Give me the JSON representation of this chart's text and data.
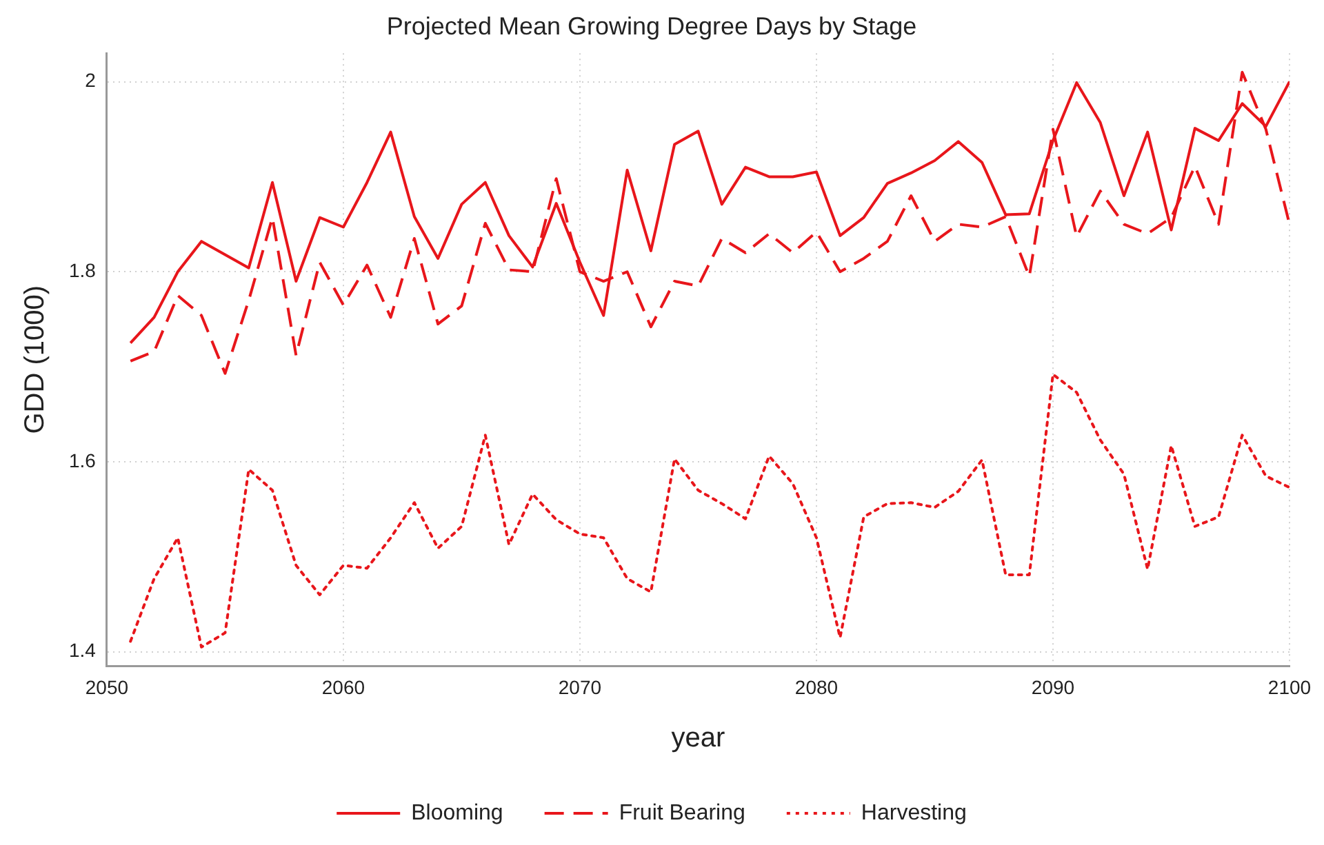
{
  "chart_data": {
    "type": "line",
    "title": "Projected Mean Growing Degree Days by Stage",
    "xlabel": "year",
    "ylabel": "GDD (1000)",
    "x": [
      2051,
      2052,
      2053,
      2054,
      2055,
      2056,
      2057,
      2058,
      2059,
      2060,
      2061,
      2062,
      2063,
      2064,
      2065,
      2066,
      2067,
      2068,
      2069,
      2070,
      2071,
      2072,
      2073,
      2074,
      2075,
      2076,
      2077,
      2078,
      2079,
      2080,
      2081,
      2082,
      2083,
      2084,
      2085,
      2086,
      2087,
      2088,
      2089,
      2090,
      2091,
      2092,
      2093,
      2094,
      2095,
      2096,
      2097,
      2098,
      2099,
      2100
    ],
    "series": [
      {
        "name": "Blooming",
        "color": "#e8161b",
        "line_style": "solid",
        "values": [
          1.725,
          1.752,
          1.8,
          1.832,
          1.818,
          1.804,
          1.894,
          1.79,
          1.857,
          1.847,
          1.894,
          1.947,
          1.858,
          1.814,
          1.871,
          1.894,
          1.838,
          1.805,
          1.872,
          1.81,
          1.754,
          1.907,
          1.822,
          1.934,
          1.948,
          1.871,
          1.91,
          1.9,
          1.9,
          1.905,
          1.838,
          1.857,
          1.893,
          1.904,
          1.917,
          1.937,
          1.915,
          1.86,
          1.861,
          1.938,
          1.999,
          1.957,
          1.88,
          1.947,
          1.844,
          1.951,
          1.938,
          1.977,
          1.953,
          2.0
        ]
      },
      {
        "name": "Fruit Bearing",
        "color": "#e8161b",
        "line_style": "dashed",
        "values": [
          1.706,
          1.716,
          1.775,
          1.754,
          1.693,
          1.77,
          1.857,
          1.712,
          1.81,
          1.765,
          1.807,
          1.752,
          1.835,
          1.745,
          1.764,
          1.851,
          1.802,
          1.8,
          1.898,
          1.8,
          1.79,
          1.8,
          1.742,
          1.79,
          1.785,
          1.835,
          1.82,
          1.84,
          1.82,
          1.842,
          1.8,
          1.814,
          1.832,
          1.88,
          1.832,
          1.85,
          1.847,
          1.858,
          1.795,
          1.95,
          1.837,
          1.885,
          1.85,
          1.84,
          1.857,
          1.911,
          1.85,
          2.01,
          1.95,
          1.85
        ]
      },
      {
        "name": "Harvesting",
        "color": "#e8161b",
        "line_style": "dotted",
        "values": [
          1.411,
          1.477,
          1.52,
          1.405,
          1.42,
          1.592,
          1.57,
          1.491,
          1.46,
          1.491,
          1.488,
          1.52,
          1.557,
          1.509,
          1.532,
          1.628,
          1.513,
          1.566,
          1.539,
          1.524,
          1.52,
          1.477,
          1.463,
          1.603,
          1.57,
          1.556,
          1.54,
          1.606,
          1.577,
          1.52,
          1.415,
          1.542,
          1.556,
          1.557,
          1.552,
          1.569,
          1.602,
          1.481,
          1.481,
          1.692,
          1.673,
          1.623,
          1.587,
          1.487,
          1.617,
          1.532,
          1.542,
          1.628,
          1.585,
          1.573
        ]
      }
    ],
    "xlim": [
      2050,
      2100
    ],
    "xticks": [
      2050,
      2060,
      2070,
      2080,
      2090,
      2100
    ],
    "ylim": [
      1.385,
      2.03
    ],
    "yticks": [
      1.4,
      1.6,
      1.8,
      2
    ],
    "grid": true,
    "legend": "bottom",
    "marker": "none"
  }
}
